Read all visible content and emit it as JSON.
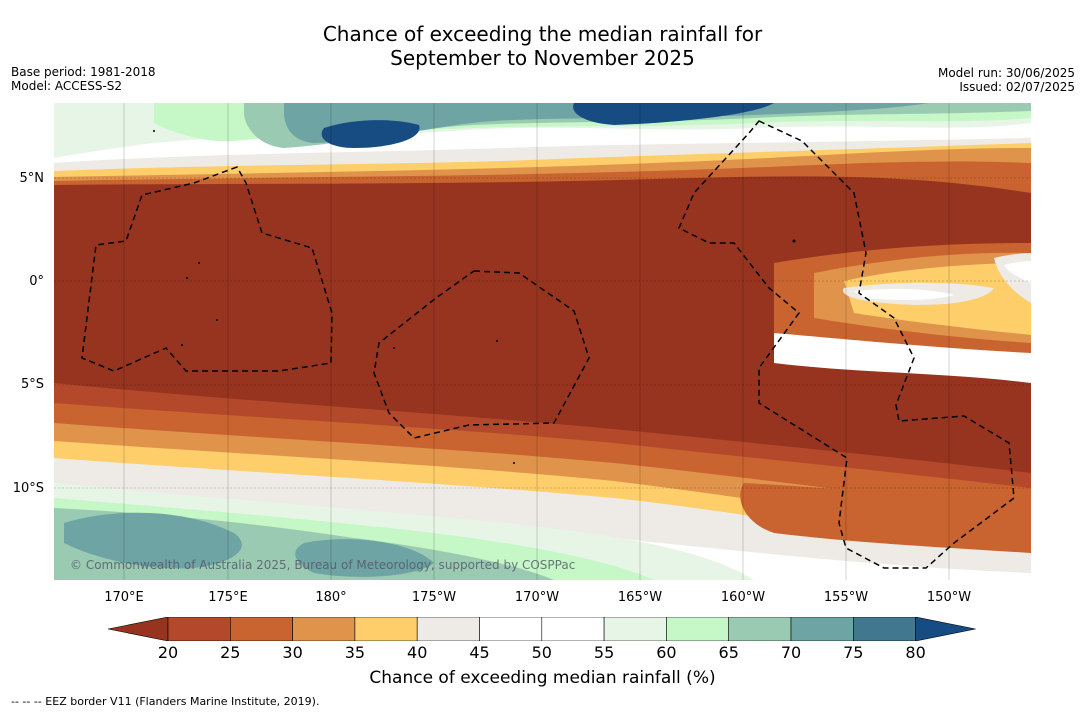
{
  "title_line1": "Chance of exceeding the median rainfall for",
  "title_line2": "September to November 2025",
  "base_period": "Base period: 1981-2018",
  "model": "Model: ACCESS-S2",
  "model_run": "Model run: 30/06/2025",
  "issued": "Issued: 02/07/2025",
  "copyright": "© Commonwealth of Australia 2025, Bureau of Meteorology, supported by COSPPac",
  "lat_labels": [
    "5°N",
    "0°",
    "5°S",
    "10°S"
  ],
  "lon_labels": [
    "170°E",
    "175°E",
    "180°",
    "175°W",
    "170°W",
    "165°W",
    "160°W",
    "155°W",
    "150°W"
  ],
  "colorbar": {
    "label": "Chance of exceeding median rainfall (%)",
    "ticks": [
      "20",
      "25",
      "30",
      "35",
      "40",
      "45",
      "50",
      "55",
      "60",
      "65",
      "70",
      "75",
      "80"
    ],
    "colors": [
      "#96341f",
      "#b3492a",
      "#c9632f",
      "#e0944b",
      "#fdce6a",
      "#eeebe6",
      "#ffffff",
      "#ffffff",
      "#e7f5e6",
      "#c5f7c7",
      "#9acbb2",
      "#6ea4a3",
      "#42788f",
      "#174c82"
    ]
  },
  "footer": "--  --  -- EEZ border V11 (Flanders Marine Institute, 2019)."
}
